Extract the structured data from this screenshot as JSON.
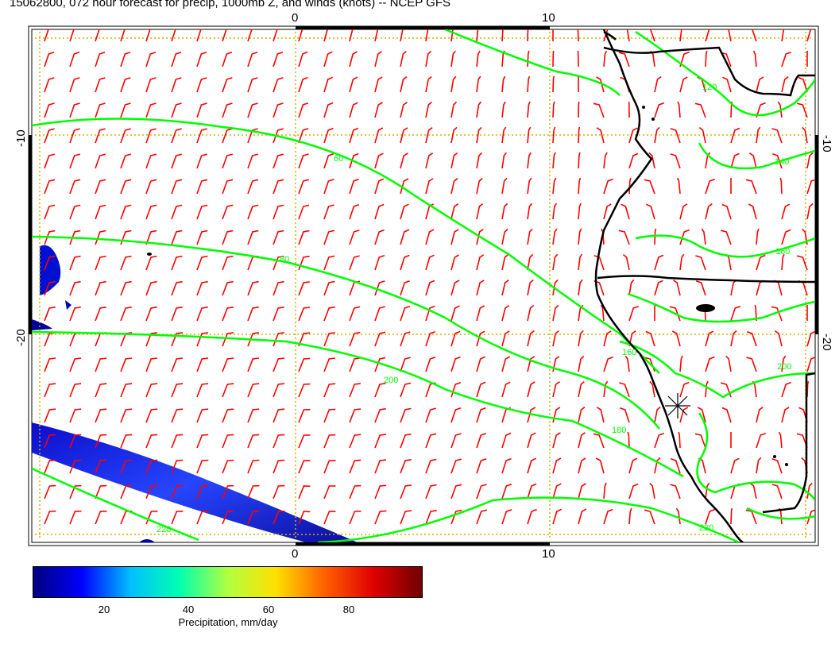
{
  "title": "15062800, 072 hour forecast for precip, 1000mb Z, and winds (knots) -- NCEP GFS",
  "map": {
    "lon_labels": [
      "0",
      "10"
    ],
    "lat_labels": [
      "-10",
      "-20"
    ],
    "contour_labels": [
      "60",
      "80",
      "120",
      "140",
      "160",
      "160",
      "180",
      "200",
      "200",
      "220",
      "220"
    ],
    "colors": {
      "contour": "#00ff00",
      "wind_barb": "#ff0000",
      "grid": "#d4b000",
      "coast": "#000000"
    }
  },
  "colorbar": {
    "ticks": [
      "20",
      "40",
      "60",
      "80"
    ],
    "title": "Precipitation, mm/day",
    "colors": [
      "#00007f",
      "#0000ff",
      "#00bfff",
      "#00ffb0",
      "#b0ff40",
      "#ffe000",
      "#ff6000",
      "#e00000",
      "#700000"
    ]
  },
  "chart_data": {
    "type": "heatmap",
    "title": "15062800, 072 hour forecast for precip, 1000mb Z, and winds (knots) -- NCEP GFS",
    "fields": [
      "precipitation (mm/day, shaded)",
      "1000mb geopotential height (contours)",
      "winds (knots, barbs)"
    ],
    "x_ticks": [
      0,
      10
    ],
    "y_ticks": [
      -10,
      -20
    ],
    "contour_levels": [
      60,
      80,
      120,
      140,
      160,
      180,
      200,
      220
    ],
    "colorbar_ticks": [
      20,
      40,
      60,
      80
    ],
    "colorbar_range": [
      0,
      100
    ],
    "colorbar_label": "Precipitation, mm/day"
  }
}
